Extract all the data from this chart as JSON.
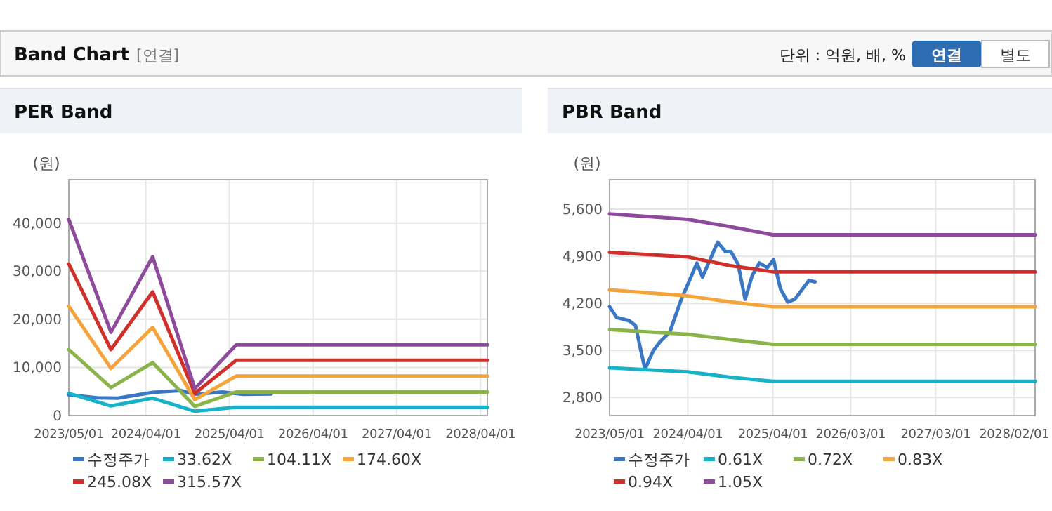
{
  "chart_data": [
    {
      "type": "other",
      "title": "Band Chart",
      "subtitle": "[연결]",
      "annotations": [
        "단위 : 억원, 배, %",
        "연결",
        "별도"
      ]
    },
    {
      "type": "line",
      "title": "PER Band",
      "ylabel": "(원)",
      "legend": "bottom",
      "grid": true,
      "marker": "none",
      "line_style": "solid",
      "xlim": [
        "2023-05-01",
        "2028-05-01"
      ],
      "ylim": [
        0,
        49000
      ],
      "xticks": [
        {
          "value": "2023-05-01",
          "label": "2023/05/01"
        },
        {
          "value": "2024-04-01",
          "label": "2024/04/01"
        },
        {
          "value": "2025-04-01",
          "label": "2025/04/01"
        },
        {
          "value": "2026-04-01",
          "label": "2026/04/01"
        },
        {
          "value": "2027-04-01",
          "label": "2027/04/01"
        },
        {
          "value": "2028-04-01",
          "label": "2028/04/01"
        }
      ],
      "yticks": [
        0,
        {
          "value": 10000,
          "label": "10,000"
        },
        {
          "value": 20000,
          "label": "20,000"
        },
        {
          "value": 30000,
          "label": "30,000"
        },
        {
          "value": 40000,
          "label": "40,000"
        }
      ],
      "series": [
        {
          "name": "수정주가",
          "color": "#3a78c6",
          "x": [
            "2023-05-01",
            "2023-09-01",
            "2023-12-01",
            "2024-05-01",
            "2024-09-01",
            "2024-11-01",
            "2025-03-01",
            "2025-06-01",
            "2025-10-01"
          ],
          "values": [
            4300,
            3700,
            3600,
            4800,
            5200,
            4400,
            4900,
            4400,
            4500
          ]
        },
        {
          "name": "33.62X",
          "color": "#17b2c8",
          "x": [
            "2023-05-01",
            "2023-11-01",
            "2024-05-01",
            "2024-11-01",
            "2025-05-01",
            "2028-05-01"
          ],
          "values": [
            4600,
            2000,
            3600,
            900,
            1700,
            1700
          ]
        },
        {
          "name": "104.11X",
          "color": "#8ab34a",
          "x": [
            "2023-05-01",
            "2023-11-01",
            "2024-05-01",
            "2024-11-01",
            "2025-05-01",
            "2028-05-01"
          ],
          "values": [
            13700,
            5800,
            11000,
            1900,
            4900,
            4900
          ]
        },
        {
          "name": "174.60X",
          "color": "#f4a43a",
          "x": [
            "2023-05-01",
            "2023-11-01",
            "2024-05-01",
            "2024-11-01",
            "2025-05-01",
            "2028-05-01"
          ],
          "values": [
            22700,
            9800,
            18300,
            3300,
            8200,
            8200
          ]
        },
        {
          "name": "245.08X",
          "color": "#d1302a",
          "x": [
            "2023-05-01",
            "2023-11-01",
            "2024-05-01",
            "2024-11-01",
            "2025-05-01",
            "2028-05-01"
          ],
          "values": [
            31500,
            13700,
            25700,
            4600,
            11500,
            11500
          ]
        },
        {
          "name": "315.57X",
          "color": "#8e4a9c",
          "x": [
            "2023-05-01",
            "2023-11-01",
            "2024-05-01",
            "2024-11-01",
            "2025-05-01",
            "2028-05-01"
          ],
          "values": [
            40700,
            17300,
            33000,
            5600,
            14700,
            14700
          ]
        }
      ]
    },
    {
      "type": "line",
      "title": "PBR Band",
      "ylabel": "(원)",
      "legend": "bottom",
      "grid": true,
      "marker": "none",
      "line_style": "solid",
      "xlim": [
        "2023-05-01",
        "2028-05-01"
      ],
      "ylim": [
        2530,
        6040
      ],
      "xticks": [
        {
          "value": "2023-05-01",
          "label": "2023/05/01"
        },
        {
          "value": "2024-04-01",
          "label": "2024/04/01"
        },
        {
          "value": "2025-04-01",
          "label": "2025/04/01"
        },
        {
          "value": "2026-03-01",
          "label": "2026/03/01"
        },
        {
          "value": "2027-03-01",
          "label": "2027/03/01"
        },
        {
          "value": "2028-02-01",
          "label": "2028/02/01"
        }
      ],
      "yticks": [
        {
          "value": 2800,
          "label": "2,800"
        },
        {
          "value": 3500,
          "label": "3,500"
        },
        {
          "value": 4200,
          "label": "4,200"
        },
        {
          "value": 4900,
          "label": "4,900"
        },
        {
          "value": 5600,
          "label": "5,600"
        }
      ],
      "series": [
        {
          "name": "수정주가",
          "color": "#3a78c6",
          "x": [
            "2023-05-01",
            "2023-05-31",
            "2023-07-25",
            "2023-08-20",
            "2023-09-30",
            "2023-11-04",
            "2023-12-04",
            "2024-01-14",
            "2024-03-04",
            "2024-05-10",
            "2024-06-03",
            "2024-08-07",
            "2024-09-09",
            "2024-10-03",
            "2024-11-03",
            "2024-12-03",
            "2025-01-02",
            "2025-02-02",
            "2025-03-08",
            "2025-04-04",
            "2025-05-04",
            "2025-06-04",
            "2025-07-04",
            "2025-09-03",
            "2025-09-29"
          ],
          "values": [
            4150,
            3990,
            3940,
            3870,
            3220,
            3490,
            3630,
            3770,
            4260,
            4800,
            4590,
            5110,
            4970,
            4970,
            4780,
            4260,
            4610,
            4800,
            4730,
            4850,
            4410,
            4220,
            4260,
            4540,
            4520
          ]
        },
        {
          "name": "0.61X",
          "color": "#17b2c8",
          "x": [
            "2023-05-01",
            "2024-04-01",
            "2024-10-01",
            "2025-04-01",
            "2028-05-01"
          ],
          "values": [
            3240,
            3180,
            3100,
            3040,
            3040
          ]
        },
        {
          "name": "0.72X",
          "color": "#8ab34a",
          "x": [
            "2023-05-01",
            "2024-04-01",
            "2024-10-01",
            "2025-04-01",
            "2028-05-01"
          ],
          "values": [
            3810,
            3740,
            3660,
            3590,
            3590
          ]
        },
        {
          "name": "0.83X",
          "color": "#f4a43a",
          "x": [
            "2023-05-01",
            "2024-04-01",
            "2024-10-01",
            "2025-04-01",
            "2028-05-01"
          ],
          "values": [
            4400,
            4310,
            4220,
            4150,
            4150
          ]
        },
        {
          "name": "0.94X",
          "color": "#d1302a",
          "x": [
            "2023-05-01",
            "2024-04-01",
            "2024-10-01",
            "2025-04-01",
            "2028-05-01"
          ],
          "values": [
            4960,
            4890,
            4760,
            4670,
            4670
          ]
        },
        {
          "name": "1.05X",
          "color": "#8e4a9c",
          "x": [
            "2023-05-01",
            "2024-04-01",
            "2024-10-01",
            "2025-04-01",
            "2028-05-01"
          ],
          "values": [
            5530,
            5450,
            5340,
            5220,
            5220
          ]
        }
      ]
    }
  ]
}
